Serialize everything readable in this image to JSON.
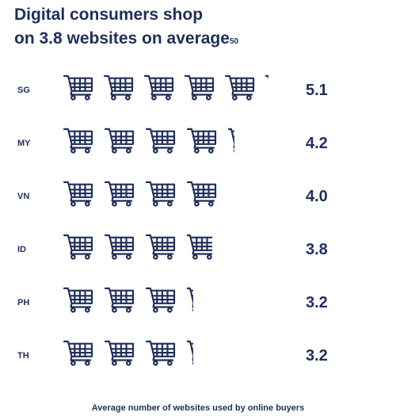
{
  "title_line1": "Digital consumers shop",
  "title_line2": "on 3.8 websites on average",
  "title_footnote": "50",
  "caption": "Average number of websites used by online buyers",
  "icon": "shopping-cart-icon",
  "colors": {
    "primary": "#1f2f5a"
  },
  "chart_data": {
    "type": "bar",
    "title": "Digital consumers shop on 3.8 websites on average",
    "xlabel": "Average number of websites used by online buyers",
    "categories": [
      "SG",
      "MY",
      "VN",
      "ID",
      "PH",
      "TH"
    ],
    "values": [
      5.1,
      4.2,
      4.0,
      3.8,
      3.2,
      3.2
    ],
    "value_labels": [
      "5.1",
      "4.2",
      "4.0",
      "3.8",
      "3.2",
      "3.2"
    ],
    "mark": "shopping-cart-icon"
  }
}
